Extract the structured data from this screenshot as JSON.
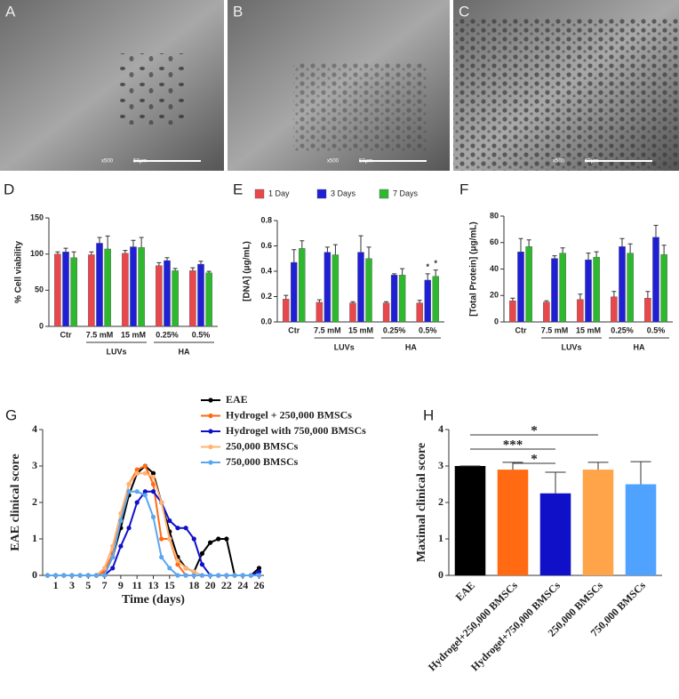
{
  "images": [
    {
      "label": "A",
      "magnification": "x500",
      "scale_bar": "50μm"
    },
    {
      "label": "B",
      "magnification": "x500",
      "scale_bar": "50μm"
    },
    {
      "label": "C",
      "magnification": "x500",
      "scale_bar": "50μm"
    }
  ],
  "chart_data": [
    {
      "type": "bar",
      "panel": "D",
      "ylabel": "% Cell viability",
      "categories": [
        "Ctr",
        "7.5 mM",
        "15 mM",
        "0.25%",
        "0.5%"
      ],
      "groups": [
        {
          "label": "LUVs",
          "members": [
            1,
            2
          ]
        },
        {
          "label": "HA",
          "members": [
            3,
            4
          ]
        }
      ],
      "series": [
        {
          "color": "#e8474b",
          "values": [
            100,
            99,
            101,
            84,
            77
          ],
          "errors": [
            3,
            4,
            4,
            4,
            4
          ]
        },
        {
          "color": "#1f1fd6",
          "values": [
            103,
            115,
            110,
            91,
            86
          ],
          "errors": [
            5,
            8,
            9,
            4,
            4
          ]
        },
        {
          "color": "#2eb82e",
          "values": [
            95,
            107,
            109,
            77,
            74
          ],
          "errors": [
            8,
            18,
            14,
            3,
            2
          ]
        }
      ],
      "ylim": [
        0,
        150
      ],
      "yticks": [
        0,
        50,
        100,
        150
      ]
    },
    {
      "type": "bar",
      "panel": "E",
      "ylabel": "[DNA] (μg/mL)",
      "legend": "top",
      "categories": [
        "Ctr",
        "7.5 mM",
        "15 mM",
        "0.25%",
        "0.5%"
      ],
      "groups": [
        {
          "label": "LUVs",
          "members": [
            1,
            2
          ]
        },
        {
          "label": "HA",
          "members": [
            3,
            4
          ]
        }
      ],
      "series": [
        {
          "name": "1 Day",
          "color": "#e8474b",
          "values": [
            0.18,
            0.155,
            0.15,
            0.15,
            0.15
          ],
          "errors": [
            0.03,
            0.02,
            0.01,
            0.01,
            0.02
          ]
        },
        {
          "name": "3 Days",
          "color": "#1f1fd6",
          "values": [
            0.47,
            0.55,
            0.55,
            0.37,
            0.33
          ],
          "errors": [
            0.1,
            0.04,
            0.13,
            0.01,
            0.05
          ]
        },
        {
          "name": "7 Days",
          "color": "#2eb82e",
          "values": [
            0.58,
            0.53,
            0.5,
            0.37,
            0.36
          ],
          "errors": [
            0.06,
            0.08,
            0.09,
            0.05,
            0.05
          ]
        }
      ],
      "annotations": [
        {
          "series": 1,
          "category": 4,
          "label": "*"
        },
        {
          "series": 2,
          "category": 4,
          "label": "*"
        }
      ],
      "ylim": [
        0,
        0.8
      ],
      "yticks": [
        {
          "value": 0,
          "label": "0.0"
        },
        0.2,
        0.4,
        0.6,
        0.8
      ]
    },
    {
      "type": "bar",
      "panel": "F",
      "ylabel": "[Total Protein] (μg/mL)",
      "categories": [
        "Ctr",
        "7.5 mM",
        "15 mM",
        "0.25%",
        "0.5%"
      ],
      "groups": [
        {
          "label": "LUVs",
          "members": [
            1,
            2
          ]
        },
        {
          "label": "HA",
          "members": [
            3,
            4
          ]
        }
      ],
      "series": [
        {
          "color": "#e8474b",
          "values": [
            16,
            15,
            17,
            19,
            18
          ],
          "errors": [
            2,
            1,
            4,
            4,
            5
          ]
        },
        {
          "color": "#1f1fd6",
          "values": [
            53,
            48,
            47,
            57,
            64
          ],
          "errors": [
            10,
            2,
            5,
            6,
            9
          ]
        },
        {
          "color": "#2eb82e",
          "values": [
            57,
            52,
            49,
            52,
            51
          ],
          "errors": [
            5,
            4,
            4,
            7,
            7
          ]
        }
      ],
      "ylim": [
        0,
        80
      ],
      "yticks": [
        0,
        20,
        40,
        60,
        80
      ]
    },
    {
      "type": "line",
      "panel": "G",
      "ylabel": "EAE clinical score",
      "xlabel": "Time (days)",
      "x": [
        0,
        1,
        2,
        3,
        4,
        5,
        6,
        7,
        8,
        9,
        10,
        11,
        12,
        13,
        14,
        15,
        16,
        17,
        18,
        19,
        20,
        21,
        22,
        23,
        24,
        25,
        26
      ],
      "series": [
        {
          "name": "EAE",
          "color": "#000000",
          "values": [
            0,
            0,
            0,
            0,
            0,
            0,
            0,
            0.1,
            0.5,
            1.3,
            2.2,
            2.8,
            3.0,
            2.8,
            2.0,
            1.2,
            0.5,
            0.2,
            0.1,
            0.6,
            0.9,
            1.0,
            1.0,
            0,
            0,
            0,
            0.2
          ]
        },
        {
          "name": "Hydrogel + 250,000 BMSCs",
          "color": "#ff6a13",
          "values": [
            0,
            0,
            0,
            0,
            0,
            0,
            0,
            0.1,
            0.6,
            1.5,
            2.5,
            2.9,
            3.0,
            2.5,
            1.0,
            1.0,
            0.3,
            0,
            0,
            0,
            0,
            0,
            0,
            0,
            0,
            0,
            0
          ]
        },
        {
          "name": "Hydrogel with 750,000 BMSCs",
          "color": "#1010c8",
          "values": [
            0,
            0,
            0,
            0,
            0,
            0,
            0,
            0,
            0.2,
            0.8,
            1.3,
            2.0,
            2.3,
            2.3,
            2.0,
            1.5,
            1.3,
            1.3,
            1.0,
            0.3,
            0,
            0,
            0,
            0,
            0,
            0,
            0.1
          ]
        },
        {
          "name": "250,000 BMSCs",
          "color": "#ffb273",
          "values": [
            0,
            0,
            0,
            0,
            0,
            0,
            0,
            0.2,
            0.8,
            1.7,
            2.5,
            2.8,
            2.8,
            2.7,
            2.0,
            1.0,
            0.4,
            0.2,
            0.1,
            0,
            0,
            0,
            0,
            0,
            0,
            0,
            0
          ]
        },
        {
          "name": "750,000 BMSCs",
          "color": "#5aa6f0",
          "values": [
            0,
            0,
            0,
            0,
            0,
            0,
            0,
            0,
            0.5,
            1.5,
            2.3,
            2.3,
            2.2,
            1.6,
            0.5,
            0.2,
            0,
            0,
            0,
            0,
            0,
            0,
            0,
            0,
            0,
            0,
            0
          ]
        }
      ],
      "xlim": [
        -0.6,
        26.6
      ],
      "xticks": [
        1,
        3,
        5,
        7,
        9,
        11,
        13,
        15,
        18,
        20,
        22,
        24,
        26
      ],
      "ylim": [
        0,
        4
      ],
      "yticks": [
        0,
        1,
        2,
        3,
        4
      ]
    },
    {
      "type": "bar",
      "panel": "H",
      "ylabel": "Maximal clinical score",
      "categories": [
        "EAE",
        "Hydrogel+250,000 BMSCs",
        "Hydrogel+750,000 BMSCs",
        "250,000 BMSCs",
        "750,000 BMSCs"
      ],
      "values": [
        3.0,
        2.9,
        2.25,
        2.9,
        2.5
      ],
      "errors": [
        0,
        0.2,
        0.58,
        0.2,
        0.62
      ],
      "colors": [
        "#000000",
        "#ff6a13",
        "#1010c8",
        "#ffa448",
        "#4fa3ff"
      ],
      "annotations": [
        {
          "from": 0,
          "to": 3,
          "label": "*"
        },
        {
          "from": 0,
          "to": 2,
          "label": "***"
        },
        {
          "from": 1,
          "to": 2,
          "label": "*"
        }
      ],
      "ylim": [
        0,
        4
      ],
      "yticks": [
        0,
        1,
        2,
        3,
        4
      ]
    }
  ]
}
